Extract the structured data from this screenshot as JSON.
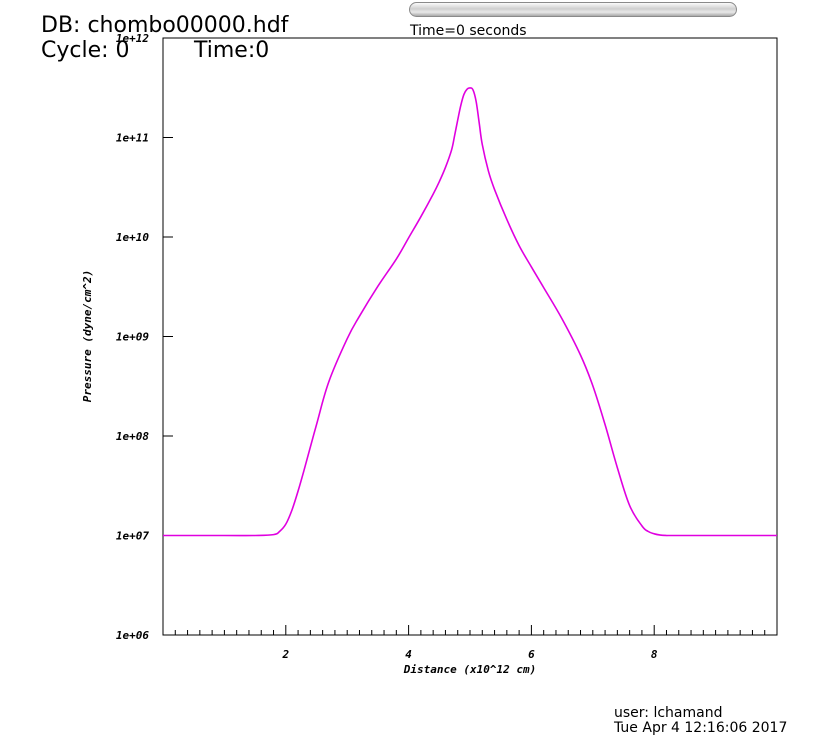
{
  "header": {
    "db_title": "DB: chombo00000.hdf",
    "cycle_text": "Cycle: 0",
    "time_text": "Time:0",
    "slider_caption": "Time=0 seconds"
  },
  "footer": {
    "user": "user: lchamand",
    "date": "Tue Apr  4 12:16:06 2017"
  },
  "colors": {
    "curve": "#e000e0",
    "axis": "#000000",
    "background": "#ffffff"
  },
  "chart_data": {
    "type": "line",
    "title": "",
    "xlabel": "Distance (x10^12 cm)",
    "ylabel": "Pressure (dyne/cm^2)",
    "xlim": [
      0,
      10
    ],
    "ylim": [
      1000000.0,
      1000000000000.0
    ],
    "yscale": "log",
    "grid": false,
    "x_ticks": [
      2,
      4,
      6,
      8
    ],
    "x_tick_labels": [
      "2",
      "4",
      "6",
      "8"
    ],
    "y_ticks": [
      1000000.0,
      10000000.0,
      100000000.0,
      1000000000.0,
      10000000000.0,
      100000000000.0,
      1000000000000.0
    ],
    "y_tick_labels": [
      "1e+06",
      "1e+07",
      "1e+08",
      "1e+09",
      "1e+10",
      "1e+11",
      "1e+12"
    ],
    "series": [
      {
        "x": [
          0.0,
          1.0,
          1.5,
          1.8,
          1.9,
          2.0,
          2.1,
          2.2,
          2.3,
          2.5,
          2.7,
          3.0,
          3.2,
          3.5,
          3.8,
          4.0,
          4.2,
          4.4,
          4.5,
          4.6,
          4.7,
          4.75,
          4.8,
          4.85,
          4.9,
          4.95,
          5.0,
          5.05,
          5.1,
          5.15,
          5.2,
          5.3,
          5.4,
          5.6,
          5.8,
          6.0,
          6.2,
          6.5,
          6.8,
          7.0,
          7.2,
          7.4,
          7.6,
          7.8,
          7.9,
          8.0,
          8.1,
          8.2,
          8.3,
          9.0,
          10.0
        ],
        "y": [
          10000000.0,
          10000000.0,
          10000000.0,
          10200000.0,
          11000000.0,
          13000000.0,
          18000000.0,
          28000000.0,
          46000000.0,
          130000000.0,
          350000000.0,
          950000000.0,
          1600000000.0,
          3200000000.0,
          6000000000.0,
          9800000000.0,
          16000000000.0,
          27000000000.0,
          36000000000.0,
          50000000000.0,
          75000000000.0,
          105000000000.0,
          150000000000.0,
          210000000000.0,
          270000000000.0,
          305000000000.0,
          315000000000.0,
          300000000000.0,
          230000000000.0,
          140000000000.0,
          85000000000.0,
          46000000000.0,
          30000000000.0,
          15000000000.0,
          8200000000.0,
          5000000000.0,
          3100000000.0,
          1500000000.0,
          650000000.0,
          320000000.0,
          130000000.0,
          48000000.0,
          20000000.0,
          12500000.0,
          11000000.0,
          10400000.0,
          10100000.0,
          10000000.0,
          10000000.0,
          10000000.0,
          10000000.0
        ]
      }
    ]
  }
}
